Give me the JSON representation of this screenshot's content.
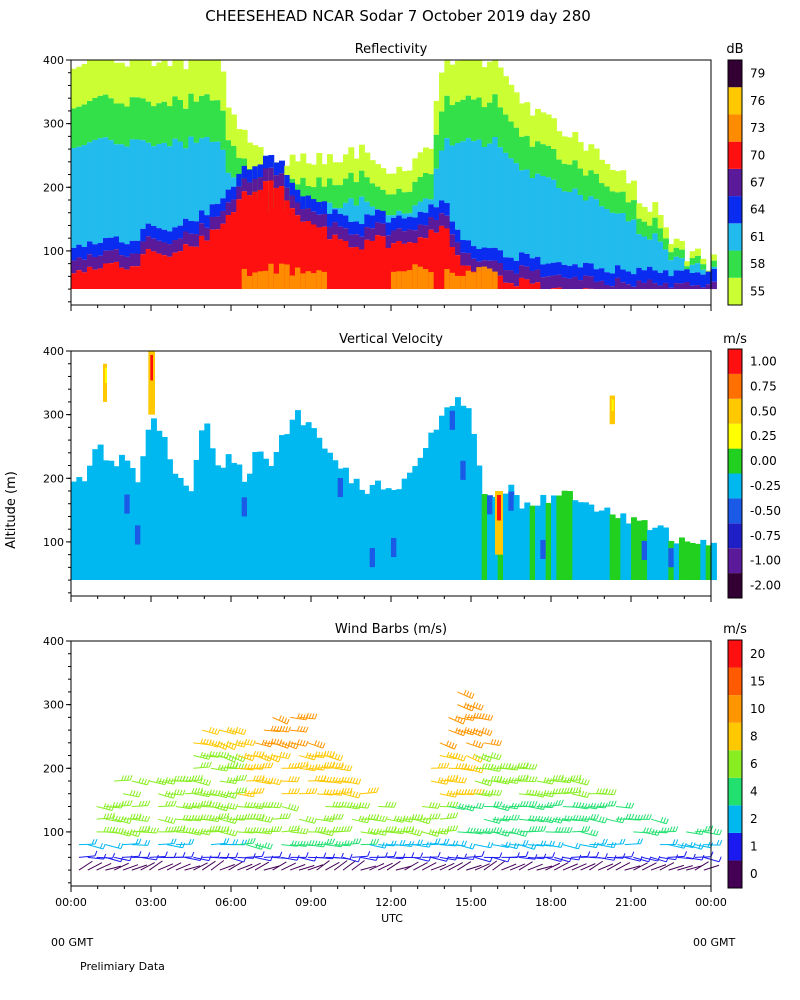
{
  "page_title": "CHEESEHEAD  NCAR Sodar   7 October 2019  day 280",
  "altitude_label": "Altitude (m)",
  "x_label": "UTC",
  "gmt_left": "00 GMT",
  "gmt_right": "00 GMT",
  "footer_note": "Prelimiary Data",
  "chart_data": [
    {
      "type": "heatmap",
      "title": "Reflectivity",
      "xlabel": "",
      "ylabel": "Altitude (m)",
      "xlim": [
        0,
        24
      ],
      "ylim": [
        15,
        400
      ],
      "yticks": [
        100,
        200,
        300,
        400
      ],
      "grid": false,
      "colorbar": {
        "unit": "dB",
        "levels": [
          "55",
          "58",
          "61",
          "64",
          "67",
          "70",
          "73",
          "76",
          "79"
        ],
        "colors": [
          "#ccff33",
          "#33e04a",
          "#22bbee",
          "#0a2cf0",
          "#5a1a9a",
          "#ff1010",
          "#ff8c00",
          "#ffc800",
          "#330033"
        ]
      },
      "profile_hours": [
        0,
        0.5,
        1,
        1.5,
        2,
        2.5,
        3,
        3.5,
        4,
        4.5,
        5,
        5.5,
        6,
        6.5,
        7,
        7.5,
        8,
        8.5,
        9,
        9.5,
        10,
        10.5,
        11,
        11.5,
        12,
        12.5,
        13,
        13.5,
        14,
        14.5,
        15,
        15.5,
        16,
        16.5,
        17,
        17.5,
        18,
        18.5,
        19,
        19.5,
        20,
        20.5,
        21,
        21.5,
        22,
        22.5,
        23,
        23.5,
        24
      ],
      "top_altitude_m": [
        400,
        400,
        400,
        400,
        400,
        400,
        400,
        400,
        400,
        400,
        400,
        400,
        320,
        280,
        260,
        240,
        240,
        240,
        240,
        240,
        250,
        260,
        250,
        240,
        230,
        230,
        240,
        270,
        400,
        400,
        400,
        400,
        400,
        360,
        330,
        310,
        300,
        290,
        270,
        260,
        230,
        220,
        200,
        180,
        160,
        120,
        100,
        90,
        80
      ],
      "core_altitude_m": [
        80,
        80,
        90,
        90,
        80,
        90,
        110,
        100,
        110,
        120,
        130,
        140,
        170,
        200,
        210,
        220,
        200,
        170,
        150,
        140,
        130,
        120,
        120,
        130,
        120,
        120,
        130,
        140,
        150,
        100,
        80,
        70,
        70,
        60,
        60,
        55,
        55,
        50,
        50,
        50,
        45,
        40,
        40,
        38,
        36,
        35,
        35,
        35,
        35
      ]
    },
    {
      "type": "heatmap",
      "title": "Vertical Velocity",
      "xlabel": "",
      "ylabel": "Altitude (m)",
      "xlim": [
        0,
        24
      ],
      "ylim": [
        15,
        400
      ],
      "yticks": [
        100,
        200,
        300,
        400
      ],
      "grid": false,
      "colorbar": {
        "unit": "m/s",
        "levels": [
          "-2.00",
          "-1.00",
          "-0.75",
          "-0.50",
          "-0.25",
          "0.00",
          "0.25",
          "0.50",
          "0.75",
          "1.00"
        ],
        "colors": [
          "#330033",
          "#5a1a9a",
          "#1f1fc8",
          "#1a5ae6",
          "#00b8f0",
          "#22d020",
          "#ffff00",
          "#ffc800",
          "#ff7000",
          "#ff1010"
        ]
      },
      "profile_hours": [
        0,
        0.5,
        1,
        1.5,
        2,
        2.5,
        3,
        3.5,
        4,
        4.5,
        5,
        5.5,
        6,
        6.5,
        7,
        7.5,
        8,
        8.5,
        9,
        9.5,
        10,
        10.5,
        11,
        11.5,
        12,
        12.5,
        13,
        13.5,
        14,
        14.5,
        15,
        15.5,
        16,
        16.5,
        17,
        17.5,
        18,
        18.5,
        19,
        19.5,
        20,
        20.5,
        21,
        21.5,
        22,
        22.5,
        23,
        23.5,
        24
      ],
      "top_altitude_m": [
        200,
        200,
        260,
        220,
        230,
        200,
        300,
        260,
        200,
        180,
        300,
        220,
        230,
        200,
        240,
        220,
        270,
        300,
        280,
        240,
        220,
        200,
        180,
        200,
        180,
        190,
        220,
        270,
        300,
        320,
        300,
        180,
        170,
        180,
        150,
        160,
        170,
        180,
        170,
        160,
        150,
        140,
        130,
        130,
        120,
        110,
        100,
        100,
        100
      ],
      "green_region_hours": [
        14.8,
        24
      ]
    },
    {
      "type": "scatter",
      "title": "Wind Barbs (m/s)",
      "xlabel": "UTC",
      "ylabel": "Altitude (m)",
      "xlim": [
        0,
        24
      ],
      "ylim": [
        15,
        400
      ],
      "xticks": [
        "00:00",
        "03:00",
        "06:00",
        "09:00",
        "12:00",
        "15:00",
        "18:00",
        "21:00",
        "00:00"
      ],
      "yticks": [
        100,
        200,
        300,
        400
      ],
      "grid": false,
      "colorbar": {
        "unit": "m/s",
        "levels": [
          "0",
          "1",
          "2",
          "4",
          "6",
          "8",
          "10",
          "15",
          "20"
        ],
        "colors": [
          "#440055",
          "#1a1af0",
          "#00b8f0",
          "#22e070",
          "#88ee22",
          "#ffc800",
          "#ff9600",
          "#ff5a00",
          "#ff1010"
        ]
      },
      "profile_hours": [
        0,
        0.5,
        1,
        1.5,
        2,
        2.5,
        3,
        3.5,
        4,
        4.5,
        5,
        5.5,
        6,
        6.5,
        7,
        7.5,
        8,
        8.5,
        9,
        9.5,
        10,
        10.5,
        11,
        11.5,
        12,
        12.5,
        13,
        13.5,
        14,
        14.5,
        15,
        15.5,
        16,
        16.5,
        17,
        17.5,
        18,
        18.5,
        19,
        19.5,
        20,
        20.5,
        21,
        21.5,
        22,
        22.5,
        23,
        23.5,
        24
      ],
      "barb_top_altitude_m": [
        120,
        80,
        150,
        210,
        200,
        180,
        180,
        180,
        180,
        250,
        280,
        270,
        260,
        240,
        260,
        290,
        300,
        290,
        270,
        240,
        200,
        170,
        160,
        140,
        140,
        130,
        130,
        200,
        280,
        330,
        300,
        250,
        220,
        210,
        200,
        190,
        190,
        180,
        180,
        170,
        160,
        150,
        140,
        130,
        120,
        110,
        100,
        100,
        100
      ]
    }
  ]
}
